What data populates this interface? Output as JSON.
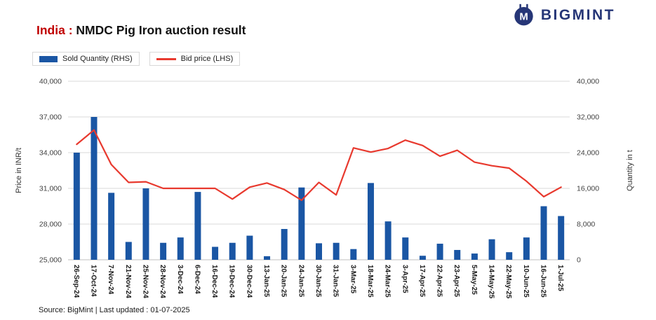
{
  "header": {
    "logo_text": "BIGMINT"
  },
  "title": {
    "prefix": "India :",
    "main": " NMDC Pig Iron auction result"
  },
  "legend": [
    {
      "label": "Sold Quantity (RHS)",
      "type": "bar"
    },
    {
      "label": "Bid price (LHS)",
      "type": "line"
    }
  ],
  "footer": {
    "source": "Source: BigMint | Last updated : 01-07-2025"
  },
  "colors": {
    "bar_blue": "#1a56a4",
    "line_red": "#e8392e",
    "title_red": "#c00000",
    "logo_navy": "#263677",
    "grid_gray": "#d9d9d9"
  },
  "chart_data": {
    "type": "bar+line combo",
    "title": "India : NMDC Pig Iron auction result",
    "grid": true,
    "legend_position": "top-left",
    "categories": [
      "26-Sep-24",
      "17-Oct-24",
      "7-Nov-24",
      "21-Nov-24",
      "25-Nov-24",
      "28-Nov-24",
      "3-Dec-24",
      "6-Dec-24",
      "16-Dec-24",
      "19-Dec-24",
      "30-Dec-24",
      "13-Jan-25",
      "20-Jan-25",
      "24-Jan-25",
      "30-Jan-25",
      "31-Jan-25",
      "3-Mar-25",
      "18-Mar-25",
      "24-Mar-25",
      "3-Apr-25",
      "17-Apr-25",
      "22-Apr-25",
      "23-Apr-25",
      "5-May-25",
      "14-May-25",
      "22-May-25",
      "10-Jun-25",
      "16-Jun-25",
      "1-Jul-25"
    ],
    "series": [
      {
        "name": "Sold Quantity (RHS)",
        "type": "bar",
        "axis": "right",
        "values": [
          24000,
          32000,
          15000,
          4000,
          16000,
          3800,
          5000,
          15200,
          2900,
          3800,
          5400,
          800,
          6900,
          16200,
          3700,
          3800,
          2400,
          17200,
          8600,
          5000,
          900,
          3600,
          2200,
          1400,
          4600,
          1700,
          5000,
          12000,
          9800
        ]
      },
      {
        "name": "Bid price (LHS)",
        "type": "line",
        "axis": "left",
        "values": [
          34700,
          35900,
          33000,
          31500,
          31550,
          31000,
          31000,
          31000,
          31000,
          30100,
          31100,
          31450,
          30900,
          30000,
          31500,
          30450,
          34400,
          34050,
          34350,
          35050,
          34600,
          33700,
          34200,
          33200,
          32900,
          32700,
          31600,
          30300,
          31100
        ]
      }
    ],
    "left_axis": {
      "label": "Price in INR/t",
      "min": 25000,
      "max": 40000,
      "step": 3000,
      "ticks": [
        "25,000",
        "28,000",
        "31,000",
        "34,000",
        "37,000",
        "40,000"
      ]
    },
    "right_axis": {
      "label": "Quantity in t",
      "min": 0,
      "max": 40000,
      "step": 8000,
      "ticks": [
        "0",
        "8,000",
        "16,000",
        "24,000",
        "32,000",
        "40,000"
      ]
    }
  }
}
